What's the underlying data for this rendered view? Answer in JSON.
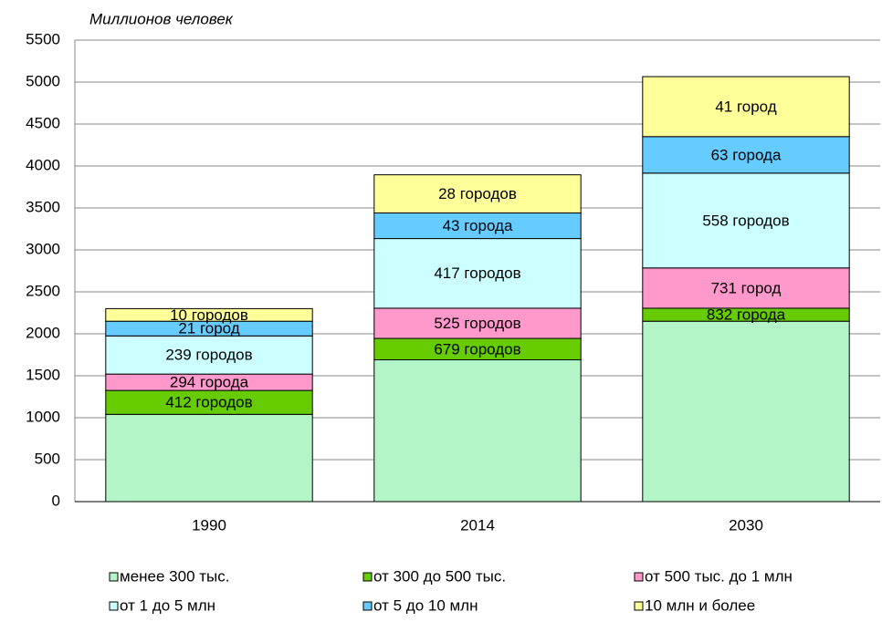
{
  "chart_data": {
    "type": "stacked_bar",
    "y_axis_label": "Миллионов человек",
    "categories": [
      "1990",
      "2014",
      "2030"
    ],
    "ylim": [
      0,
      5500
    ],
    "yticks": [
      0,
      500,
      1000,
      1500,
      2000,
      2500,
      3000,
      3500,
      4000,
      4500,
      5000,
      5500
    ],
    "grid": true,
    "legend_position": "bottom",
    "series": [
      {
        "name": "менее 300 тыс.",
        "color": "#b3f5c7",
        "values": [
          1040,
          1690,
          2150
        ],
        "labels": [
          null,
          null,
          null
        ]
      },
      {
        "name": "от 300 до 500 тыс.",
        "color": "#66cc00",
        "values": [
          285,
          255,
          155
        ],
        "labels": [
          "412 городов",
          "679 городов",
          "832 города"
        ]
      },
      {
        "name": "от 500 тыс. до 1 млн",
        "color": "#ff99cc",
        "values": [
          195,
          360,
          480
        ],
        "labels": [
          "294 города",
          "525 городов",
          "731 город"
        ]
      },
      {
        "name": "от 1 до 5 млн",
        "color": "#ccffff",
        "values": [
          455,
          830,
          1130
        ],
        "labels": [
          "239 городов",
          "417 городов",
          "558 городов"
        ]
      },
      {
        "name": "от 5 до 10 млн",
        "color": "#66ccff",
        "values": [
          175,
          305,
          435
        ],
        "labels": [
          "21 город",
          "43 города",
          "63 города"
        ]
      },
      {
        "name": "10 млн и более",
        "color": "#ffff99",
        "values": [
          150,
          455,
          715
        ],
        "labels": [
          "10 городов",
          "28 городов",
          "41 город"
        ]
      }
    ]
  }
}
